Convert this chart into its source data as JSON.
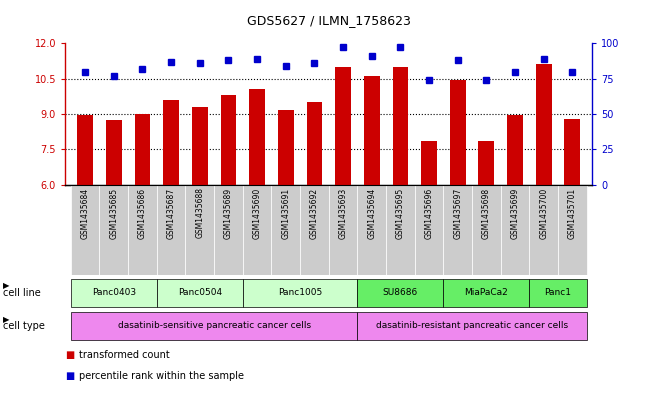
{
  "title": "GDS5627 / ILMN_1758623",
  "samples": [
    "GSM1435684",
    "GSM1435685",
    "GSM1435686",
    "GSM1435687",
    "GSM1435688",
    "GSM1435689",
    "GSM1435690",
    "GSM1435691",
    "GSM1435692",
    "GSM1435693",
    "GSM1435694",
    "GSM1435695",
    "GSM1435696",
    "GSM1435697",
    "GSM1435698",
    "GSM1435699",
    "GSM1435700",
    "GSM1435701"
  ],
  "bar_values": [
    8.95,
    8.75,
    9.0,
    9.6,
    9.3,
    9.8,
    10.05,
    9.15,
    9.5,
    11.0,
    10.6,
    11.0,
    7.85,
    10.45,
    7.85,
    8.95,
    11.1,
    8.8
  ],
  "dot_values": [
    80,
    77,
    82,
    87,
    86,
    88,
    89,
    84,
    86,
    97,
    91,
    97,
    74,
    88,
    74,
    80,
    89,
    80
  ],
  "bar_color": "#cc0000",
  "dot_color": "#0000cc",
  "ylim_left": [
    6,
    12
  ],
  "ylim_right": [
    0,
    100
  ],
  "yticks_left": [
    6,
    7.5,
    9,
    10.5,
    12
  ],
  "yticks_right": [
    0,
    25,
    50,
    75,
    100
  ],
  "grid_values": [
    7.5,
    9.0,
    10.5
  ],
  "cell_lines": [
    {
      "name": "Panc0403",
      "start": 0,
      "end": 2
    },
    {
      "name": "Panc0504",
      "start": 3,
      "end": 5
    },
    {
      "name": "Panc1005",
      "start": 6,
      "end": 9
    },
    {
      "name": "SU8686",
      "start": 10,
      "end": 12
    },
    {
      "name": "MiaPaCa2",
      "start": 13,
      "end": 15
    },
    {
      "name": "Panc1",
      "start": 16,
      "end": 17
    }
  ],
  "cell_line_color_sensitive": "#ccffcc",
  "cell_line_color_resistant": "#66ee66",
  "cell_types": [
    {
      "name": "dasatinib-sensitive pancreatic cancer cells",
      "start": 0,
      "end": 9
    },
    {
      "name": "dasatinib-resistant pancreatic cancer cells",
      "start": 10,
      "end": 17
    }
  ],
  "cell_type_color": "#ee88ee",
  "sample_bg_color": "#cccccc",
  "bar_color_hex": "#cc0000",
  "dot_color_hex": "#0000cc",
  "left_label_color": "#cc0000",
  "right_label_color": "#0000cc"
}
